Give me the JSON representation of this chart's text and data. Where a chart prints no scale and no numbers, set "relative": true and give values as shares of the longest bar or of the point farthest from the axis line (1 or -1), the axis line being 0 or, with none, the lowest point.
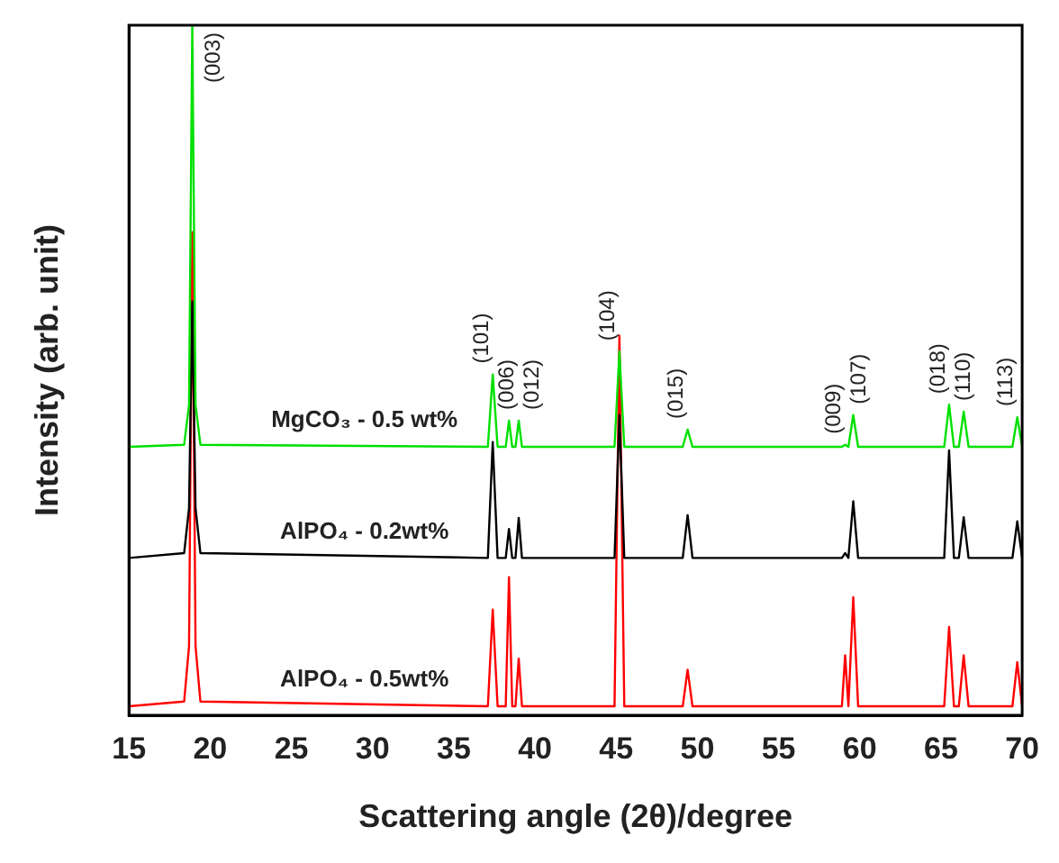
{
  "chart_data": {
    "type": "line",
    "relative": true,
    "xlabel": "Scattering angle (2θ)/degree",
    "ylabel": "Intensity (arb. unit)",
    "xlim": [
      15,
      70
    ],
    "xticks": [
      15,
      20,
      25,
      30,
      35,
      40,
      45,
      50,
      55,
      60,
      65,
      70
    ],
    "grid": false,
    "legend": false,
    "marker": "none",
    "line_style": "solid",
    "series": [
      {
        "name": "MgCO₃ - 0.5 wt%",
        "color": "#00e000",
        "x": [
          15,
          18.4,
          18.7,
          18.9,
          19.1,
          19.4,
          37.1,
          37.4,
          37.7,
          38.2,
          38.4,
          38.6,
          38.8,
          39.0,
          39.2,
          44.9,
          45.2,
          45.5,
          49.1,
          49.4,
          49.7,
          58.9,
          59.1,
          59.3,
          59.6,
          59.9,
          65.2,
          65.5,
          65.8,
          66.1,
          66.4,
          66.7,
          69.4,
          69.7,
          70
        ],
        "values": [
          0.389,
          0.392,
          0.45,
          1.0,
          0.45,
          0.392,
          0.389,
          0.494,
          0.389,
          0.389,
          0.427,
          0.389,
          0.389,
          0.427,
          0.389,
          0.389,
          0.527,
          0.389,
          0.389,
          0.414,
          0.389,
          0.389,
          0.392,
          0.389,
          0.435,
          0.389,
          0.389,
          0.45,
          0.389,
          0.389,
          0.44,
          0.389,
          0.389,
          0.432,
          0.389
        ]
      },
      {
        "name": "AlPO₄ - 0.2wt%",
        "color": "#000000",
        "x": [
          15,
          18.4,
          18.7,
          18.9,
          19.1,
          19.4,
          37.1,
          37.4,
          37.7,
          38.2,
          38.4,
          38.6,
          38.8,
          39.0,
          39.2,
          44.9,
          45.2,
          45.5,
          49.1,
          49.4,
          49.7,
          58.9,
          59.1,
          59.3,
          59.6,
          59.9,
          65.2,
          65.5,
          65.8,
          66.1,
          66.4,
          66.7,
          69.4,
          69.7,
          70
        ],
        "values": [
          0.228,
          0.235,
          0.3,
          0.6,
          0.3,
          0.235,
          0.228,
          0.396,
          0.228,
          0.228,
          0.27,
          0.228,
          0.228,
          0.286,
          0.228,
          0.228,
          0.435,
          0.228,
          0.228,
          0.29,
          0.228,
          0.228,
          0.235,
          0.228,
          0.31,
          0.228,
          0.228,
          0.384,
          0.228,
          0.228,
          0.287,
          0.228,
          0.228,
          0.281,
          0.228
        ]
      },
      {
        "name": "AlPO₄ - 0.5wt%",
        "color": "#ff0000",
        "x": [
          15,
          18.4,
          18.7,
          18.9,
          19.1,
          19.4,
          37.1,
          37.4,
          37.7,
          38.2,
          38.4,
          38.6,
          38.8,
          39.0,
          39.2,
          44.9,
          45.2,
          45.5,
          49.1,
          49.4,
          49.7,
          58.9,
          59.1,
          59.3,
          59.6,
          59.9,
          65.2,
          65.5,
          65.8,
          66.1,
          66.4,
          66.7,
          69.4,
          69.7,
          70
        ],
        "values": [
          0.013,
          0.02,
          0.1,
          0.7,
          0.1,
          0.02,
          0.013,
          0.153,
          0.013,
          0.013,
          0.2,
          0.013,
          0.013,
          0.082,
          0.013,
          0.013,
          0.55,
          0.013,
          0.013,
          0.066,
          0.013,
          0.013,
          0.087,
          0.013,
          0.171,
          0.013,
          0.013,
          0.128,
          0.013,
          0.013,
          0.087,
          0.013,
          0.013,
          0.077,
          0.013
        ]
      }
    ],
    "annotations": [
      {
        "text": "(003)",
        "x": 18.9,
        "y": 1.0
      },
      {
        "text": "(101)",
        "x": 37.4,
        "y": 0.494
      },
      {
        "text": "(006)",
        "x": 38.4,
        "y": 0.427
      },
      {
        "text": "(012)",
        "x": 39.0,
        "y": 0.427
      },
      {
        "text": "(104)",
        "x": 45.2,
        "y": 0.527
      },
      {
        "text": "(015)",
        "x": 49.4,
        "y": 0.414
      },
      {
        "text": "(009)",
        "x": 59.1,
        "y": 0.392
      },
      {
        "text": "(107)",
        "x": 59.6,
        "y": 0.435
      },
      {
        "text": "(018)",
        "x": 65.5,
        "y": 0.45
      },
      {
        "text": "(110)",
        "x": 66.4,
        "y": 0.44
      },
      {
        "text": "(113)",
        "x": 69.7,
        "y": 0.432
      }
    ]
  }
}
